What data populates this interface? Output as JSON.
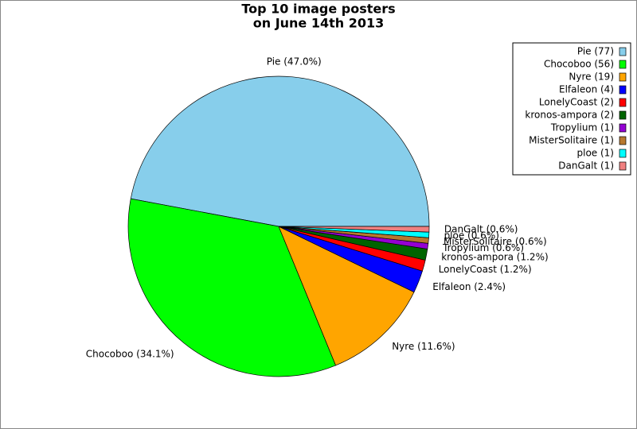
{
  "chart_data": {
    "type": "pie",
    "title": [
      "Top 10 image posters",
      "on June 14th 2013"
    ],
    "values": [
      47.0,
      34.1,
      11.6,
      2.4,
      1.2,
      1.2,
      0.6,
      0.6,
      0.6,
      0.6
    ],
    "value_labels": [
      "Pie (47.0%)",
      "Chocoboo (34.1%)",
      "Nyre (11.6%)",
      "Elfaleon (2.4%)",
      "LonelyCoast (1.2%)",
      "kronos-ampora (1.2%)",
      "Tropylium (0.6%)",
      "MisterSolitaire (0.6%)",
      "ploe (0.6%)",
      "DanGalt (0.6%)"
    ],
    "legend_labels": [
      "Pie (77)",
      "Chocoboo (56)",
      "Nyre (19)",
      "Elfaleon (4)",
      "LonelyCoast (2)",
      "kronos-ampora (2)",
      "Tropylium (1)",
      "MisterSolitaire (1)",
      "ploe (1)",
      "DanGalt (1)"
    ],
    "colors": [
      "#87ceeb",
      "#00ff00",
      "#ffa500",
      "#0000ff",
      "#ff0000",
      "#006400",
      "#9400d3",
      "#b8782e",
      "#00ffff",
      "#f08080"
    ],
    "legend_position": "upper right"
  }
}
